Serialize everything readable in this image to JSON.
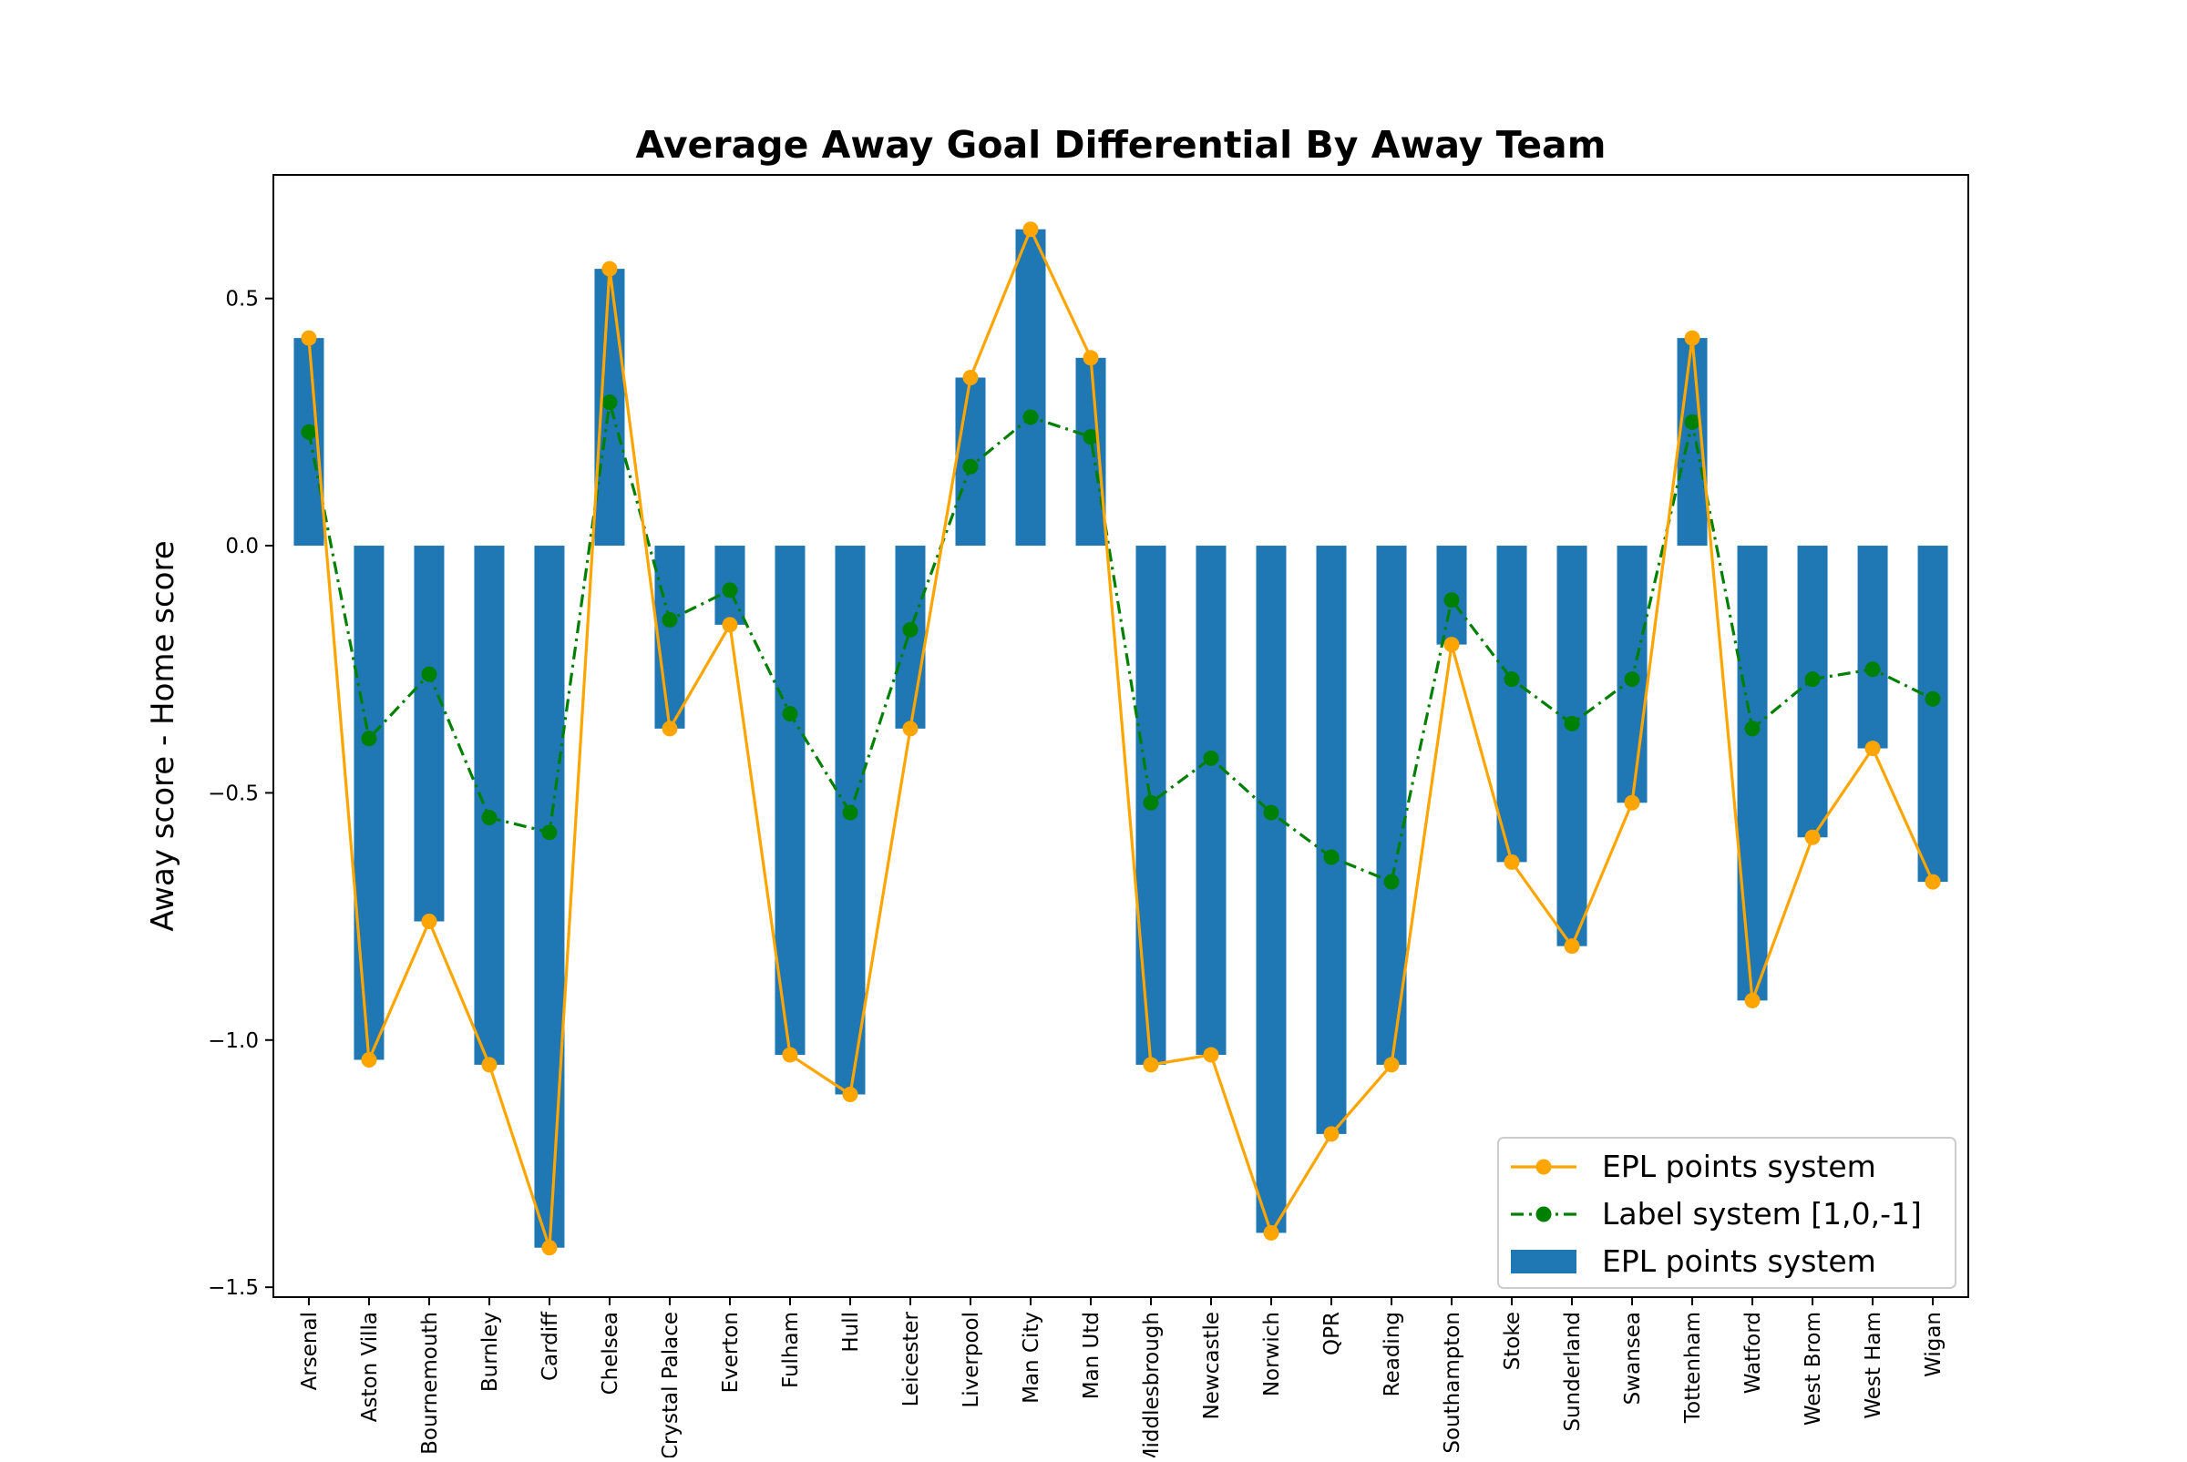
{
  "chart_data": {
    "type": "bar",
    "title": "Average Away Goal Differential By Away Team",
    "xlabel": "",
    "ylabel": "Away score - Home score",
    "ylim": [
      -1.52,
      0.75
    ],
    "yticks": [
      0.5,
      0.0,
      -0.5,
      -1.0,
      -1.5
    ],
    "ytick_labels": [
      "0.5",
      "0.0",
      "−0.5",
      "−1.0",
      "−1.5"
    ],
    "categories": [
      "Arsenal",
      "Aston Villa",
      "Bournemouth",
      "Burnley",
      "Cardiff",
      "Chelsea",
      "Crystal Palace",
      "Everton",
      "Fulham",
      "Hull",
      "Leicester",
      "Liverpool",
      "Man City",
      "Man Utd",
      "Middlesbrough",
      "Newcastle",
      "Norwich",
      "QPR",
      "Reading",
      "Southampton",
      "Stoke",
      "Sunderland",
      "Swansea",
      "Tottenham",
      "Watford",
      "West Brom",
      "West Ham",
      "Wigan"
    ],
    "series": [
      {
        "name": "EPL points system",
        "kind": "bar",
        "color": "#1f77b4",
        "values": [
          0.42,
          -1.04,
          -0.76,
          -1.05,
          -1.42,
          0.56,
          -0.37,
          -0.16,
          -1.03,
          -1.11,
          -0.37,
          0.34,
          0.64,
          0.38,
          -1.05,
          -1.03,
          -1.39,
          -1.19,
          -1.05,
          -0.2,
          -0.64,
          -0.81,
          -0.52,
          0.42,
          -0.92,
          -0.59,
          -0.41,
          -0.68
        ]
      },
      {
        "name": "EPL points system",
        "kind": "line",
        "style": "solid",
        "marker": "circle",
        "color": "#ffa500",
        "values": [
          0.42,
          -1.04,
          -0.76,
          -1.05,
          -1.42,
          0.56,
          -0.37,
          -0.16,
          -1.03,
          -1.11,
          -0.37,
          0.34,
          0.64,
          0.38,
          -1.05,
          -1.03,
          -1.39,
          -1.19,
          -1.05,
          -0.2,
          -0.64,
          -0.81,
          -0.52,
          0.42,
          -0.92,
          -0.59,
          -0.41,
          -0.68
        ]
      },
      {
        "name": "Label system [1,0,-1]",
        "kind": "line",
        "style": "dashdot",
        "marker": "circle",
        "color": "#008000",
        "values": [
          0.23,
          -0.39,
          -0.26,
          -0.55,
          -0.58,
          0.29,
          -0.15,
          -0.09,
          -0.34,
          -0.54,
          -0.17,
          0.16,
          0.26,
          0.22,
          -0.52,
          -0.43,
          -0.54,
          -0.63,
          -0.68,
          -0.11,
          -0.27,
          -0.36,
          -0.27,
          0.25,
          -0.37,
          -0.27,
          -0.25,
          -0.31
        ]
      }
    ],
    "legend": {
      "placement": "lower-right",
      "entries": [
        "EPL points system",
        "Label system [1,0,-1]",
        "EPL points system"
      ]
    },
    "grid": false
  }
}
